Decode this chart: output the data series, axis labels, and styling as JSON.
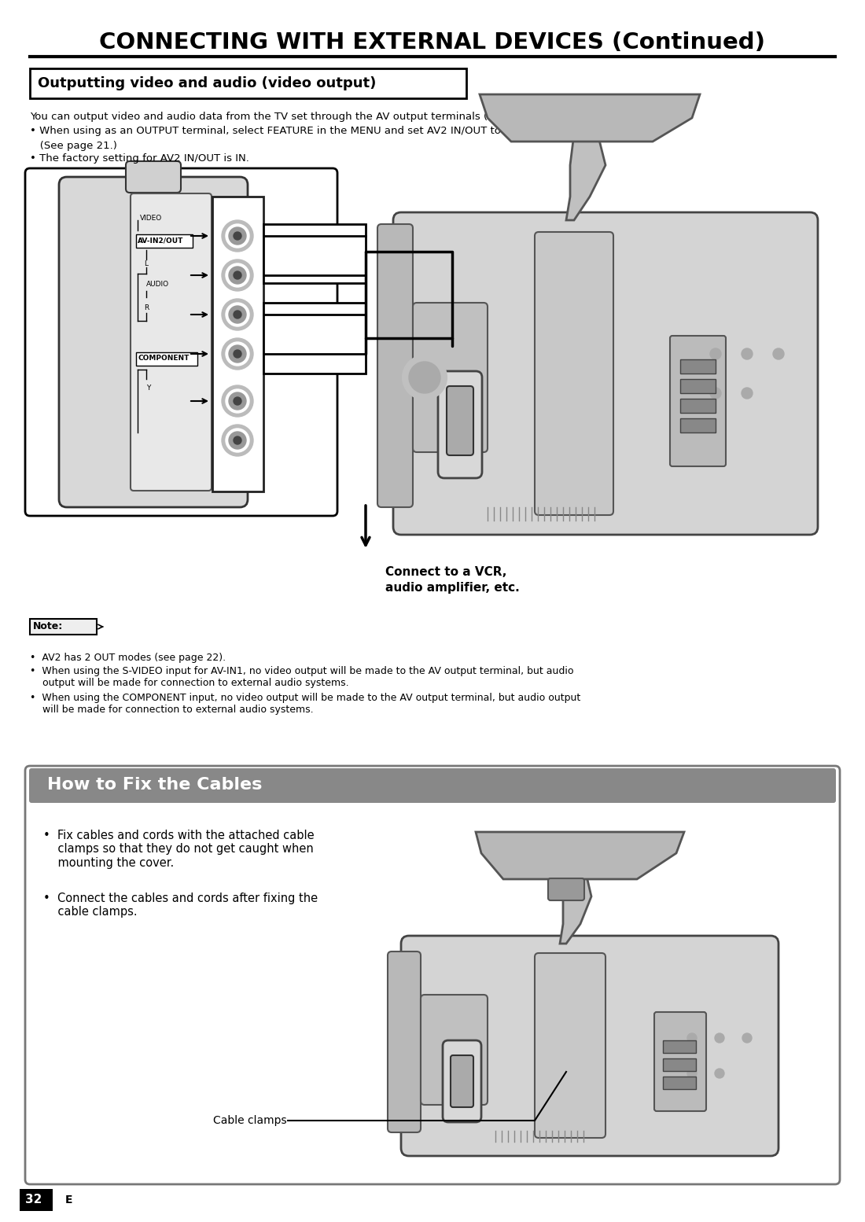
{
  "title": "CONNECTING WITH EXTERNAL DEVICES (Continued)",
  "section1_title": "Outputting video and audio (video output)",
  "section1_text1": "You can output video and audio data from the TV set through the AV output terminals (AV-OUT).",
  "section1_bullet1": "• When using as an OUTPUT terminal, select FEATURE in the MENU and set AV2 IN/OUT to OUT.",
  "section1_bullet1b": "   (See page 21.)",
  "section1_bullet2": "• The factory setting for AV2 IN/OUT is IN.",
  "note_label": "Note:",
  "note_bullet1": "•  AV2 has 2 OUT modes (see page 22).",
  "note_bullet2": "•  When using the S-VIDEO input for AV-IN1, no video output will be made to the AV output terminal, but audio\n    output will be made for connection to external audio systems.",
  "note_bullet3": "•  When using the COMPONENT input, no video output will be made to the AV output terminal, but audio output\n    will be made for connection to external audio systems.",
  "vcr_label1": "Connect to a VCR,",
  "vcr_label2": "audio amplifier, etc.",
  "section2_title": "How to Fix the Cables",
  "section2_bullet1": "•  Fix cables and cords with the attached cable\n    clamps so that they do not get caught when\n    mounting the cover.",
  "section2_bullet2": "•  Connect the cables and cords after fixing the\n    cable clamps.",
  "cable_clamps_label": "Cable clamps",
  "page_number": "32",
  "bg_color": "#ffffff",
  "text_color": "#000000"
}
